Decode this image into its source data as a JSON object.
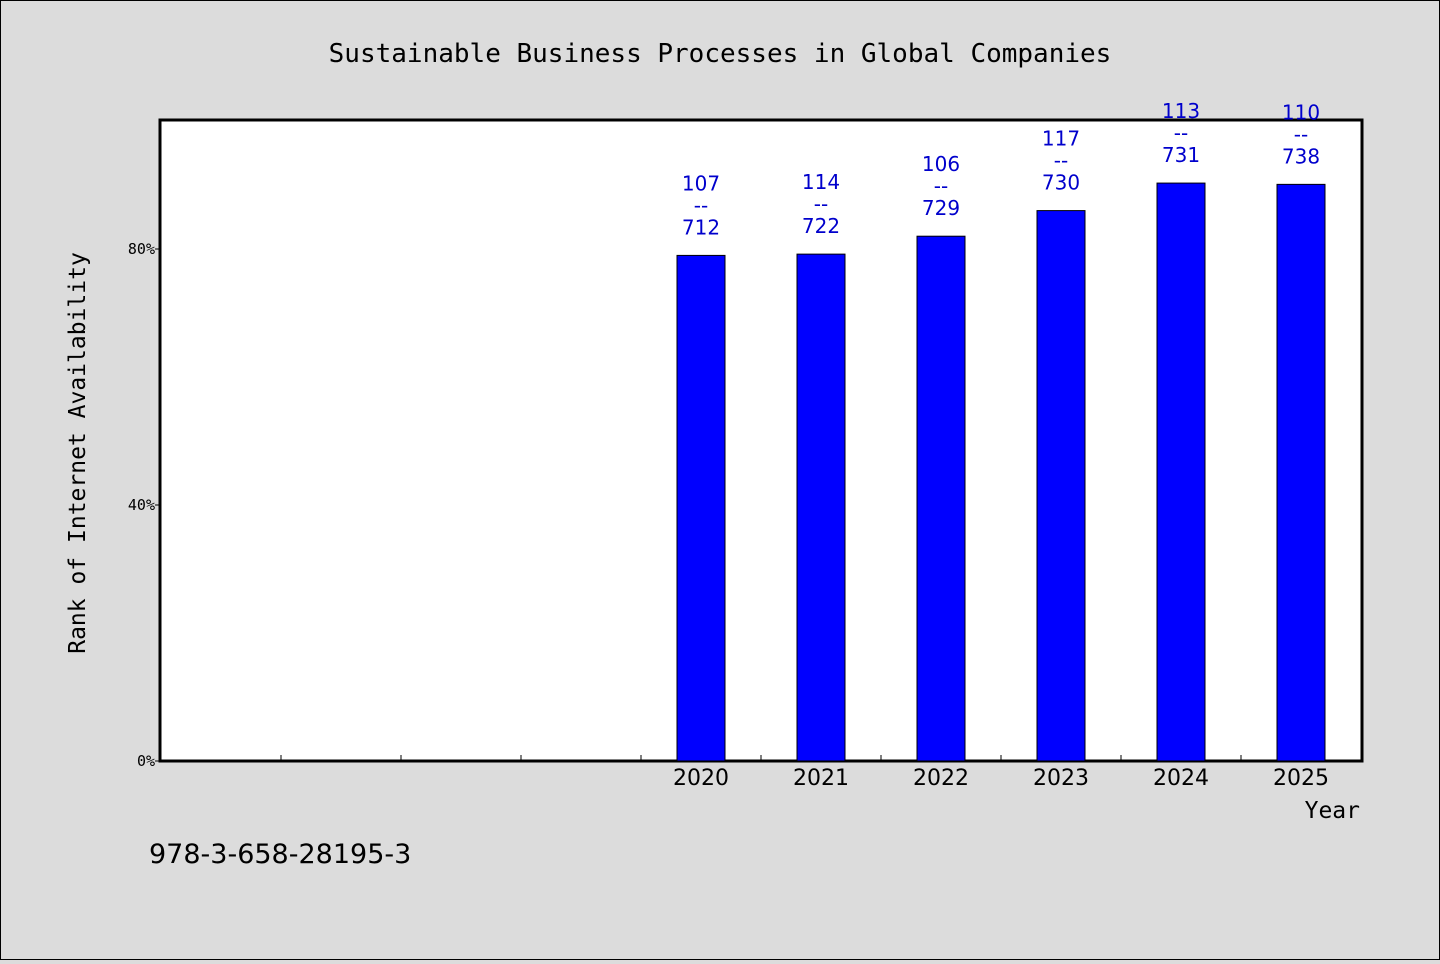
{
  "chart_data": {
    "type": "bar",
    "title": "Sustainable Business Processes in Global Companies",
    "xlabel": "Year",
    "ylabel": "Rank of Internet Availability",
    "slots": 10,
    "categories": [
      "2020",
      "2021",
      "2022",
      "2023",
      "2024",
      "2025"
    ],
    "values": [
      79,
      79.2,
      82,
      86,
      90.3,
      90.1
    ],
    "data_labels": [
      {
        "top": "107",
        "sep": "--",
        "bottom": "712"
      },
      {
        "top": "114",
        "sep": "--",
        "bottom": "722"
      },
      {
        "top": "106",
        "sep": "--",
        "bottom": "729"
      },
      {
        "top": "117",
        "sep": "--",
        "bottom": "730"
      },
      {
        "top": "113",
        "sep": "--",
        "bottom": "731"
      },
      {
        "top": "110",
        "sep": "--",
        "bottom": "738"
      }
    ],
    "ylim": [
      0,
      100
    ],
    "yticks": [
      {
        "value": 0,
        "label": "0%"
      },
      {
        "value": 40,
        "label": "40%"
      },
      {
        "value": 80,
        "label": "80%"
      }
    ],
    "grid": false,
    "colors": {
      "bar": "#0000ff",
      "label": "#0000cc",
      "background": "#dcdcdc",
      "plot": "#ffffff"
    }
  },
  "footer_text": "978-3-658-28195-3"
}
